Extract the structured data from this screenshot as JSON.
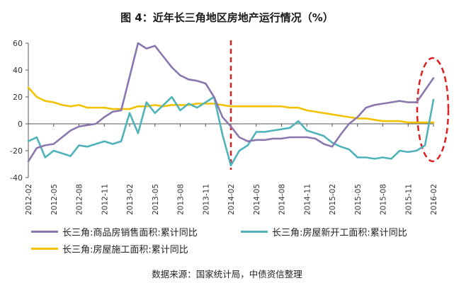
{
  "chart_data": {
    "type": "line",
    "title": "图 4：近年长三角地区房地产运行情况（%）",
    "xlabel": "",
    "ylabel": "",
    "ylim": [
      -40,
      60
    ],
    "yticks": [
      60,
      40,
      20,
      0,
      -20,
      -40
    ],
    "x_tick_labels": [
      "2012-02",
      "2012-05",
      "2012-08",
      "2012-11",
      "2013-02",
      "2013-05",
      "2013-08",
      "2013-11",
      "2014-02",
      "2014-05",
      "2014-08",
      "2014-11",
      "2015-02",
      "2015-05",
      "2015-08",
      "2015-11",
      "2016-02"
    ],
    "x": [
      "2012-02",
      "2012-03",
      "2012-04",
      "2012-05",
      "2012-06",
      "2012-07",
      "2012-08",
      "2012-09",
      "2012-10",
      "2012-11",
      "2012-12",
      "2013-01",
      "2013-02",
      "2013-03",
      "2013-04",
      "2013-05",
      "2013-06",
      "2013-07",
      "2013-08",
      "2013-09",
      "2013-10",
      "2013-11",
      "2013-12",
      "2014-01",
      "2014-02",
      "2014-03",
      "2014-04",
      "2014-05",
      "2014-06",
      "2014-07",
      "2014-08",
      "2014-09",
      "2014-10",
      "2014-11",
      "2014-12",
      "2015-01",
      "2015-02",
      "2015-03",
      "2015-04",
      "2015-05",
      "2015-06",
      "2015-07",
      "2015-08",
      "2015-09",
      "2015-10",
      "2015-11",
      "2015-12",
      "2016-01",
      "2016-02"
    ],
    "series": [
      {
        "name": "长三角:商品房销售面积:累计同比",
        "color": "#8b77b0",
        "values": [
          -28,
          -18,
          -16,
          -15,
          -10,
          -5,
          -2,
          -1,
          0,
          5,
          9,
          10,
          35,
          60,
          56,
          58,
          50,
          42,
          36,
          33,
          32,
          30,
          20,
          5,
          -2,
          -10,
          -13,
          -12,
          -12,
          -11,
          -11,
          -10,
          -10,
          -10,
          -11,
          -15,
          -17,
          -8,
          0,
          5,
          12,
          14,
          15,
          16,
          17,
          16,
          16,
          25,
          34
        ]
      },
      {
        "name": "长三角:房屋新开工面积:累计同比",
        "color": "#4fb3b9",
        "values": [
          -13,
          -10,
          -25,
          -20,
          -22,
          -24,
          -16,
          -17,
          -15,
          -13,
          -15,
          -13,
          8,
          -7,
          16,
          8,
          14,
          20,
          10,
          15,
          12,
          16,
          20,
          -8,
          -31,
          -20,
          -16,
          -6,
          -6,
          -5,
          -4,
          -3,
          2,
          -5,
          -7,
          -9,
          -14,
          -17,
          -19,
          -25,
          -25,
          -26,
          -25,
          -26,
          -20,
          -21,
          -20,
          -16,
          18
        ]
      },
      {
        "name": "长三角:房屋施工面积:累计同比",
        "color": "#f2c200",
        "values": [
          27,
          20,
          17,
          16,
          14,
          13,
          14,
          12,
          12,
          12,
          11,
          11,
          11,
          13,
          13,
          14,
          13,
          14,
          14,
          14,
          15,
          15,
          15,
          14,
          13,
          13,
          13,
          13,
          13,
          13,
          13,
          12,
          12,
          10,
          9,
          8,
          7,
          6,
          5,
          4,
          4,
          3,
          2,
          2,
          2,
          1,
          1,
          1,
          1
        ]
      }
    ],
    "annotations": [
      {
        "type": "vertical-dashed-line",
        "at": "2014-02",
        "color": "#e02020"
      },
      {
        "type": "dashed-ellipse",
        "at": "2016-02",
        "color": "#e02020"
      }
    ],
    "source_note": "数据来源：国家统计局，中债资信整理"
  }
}
